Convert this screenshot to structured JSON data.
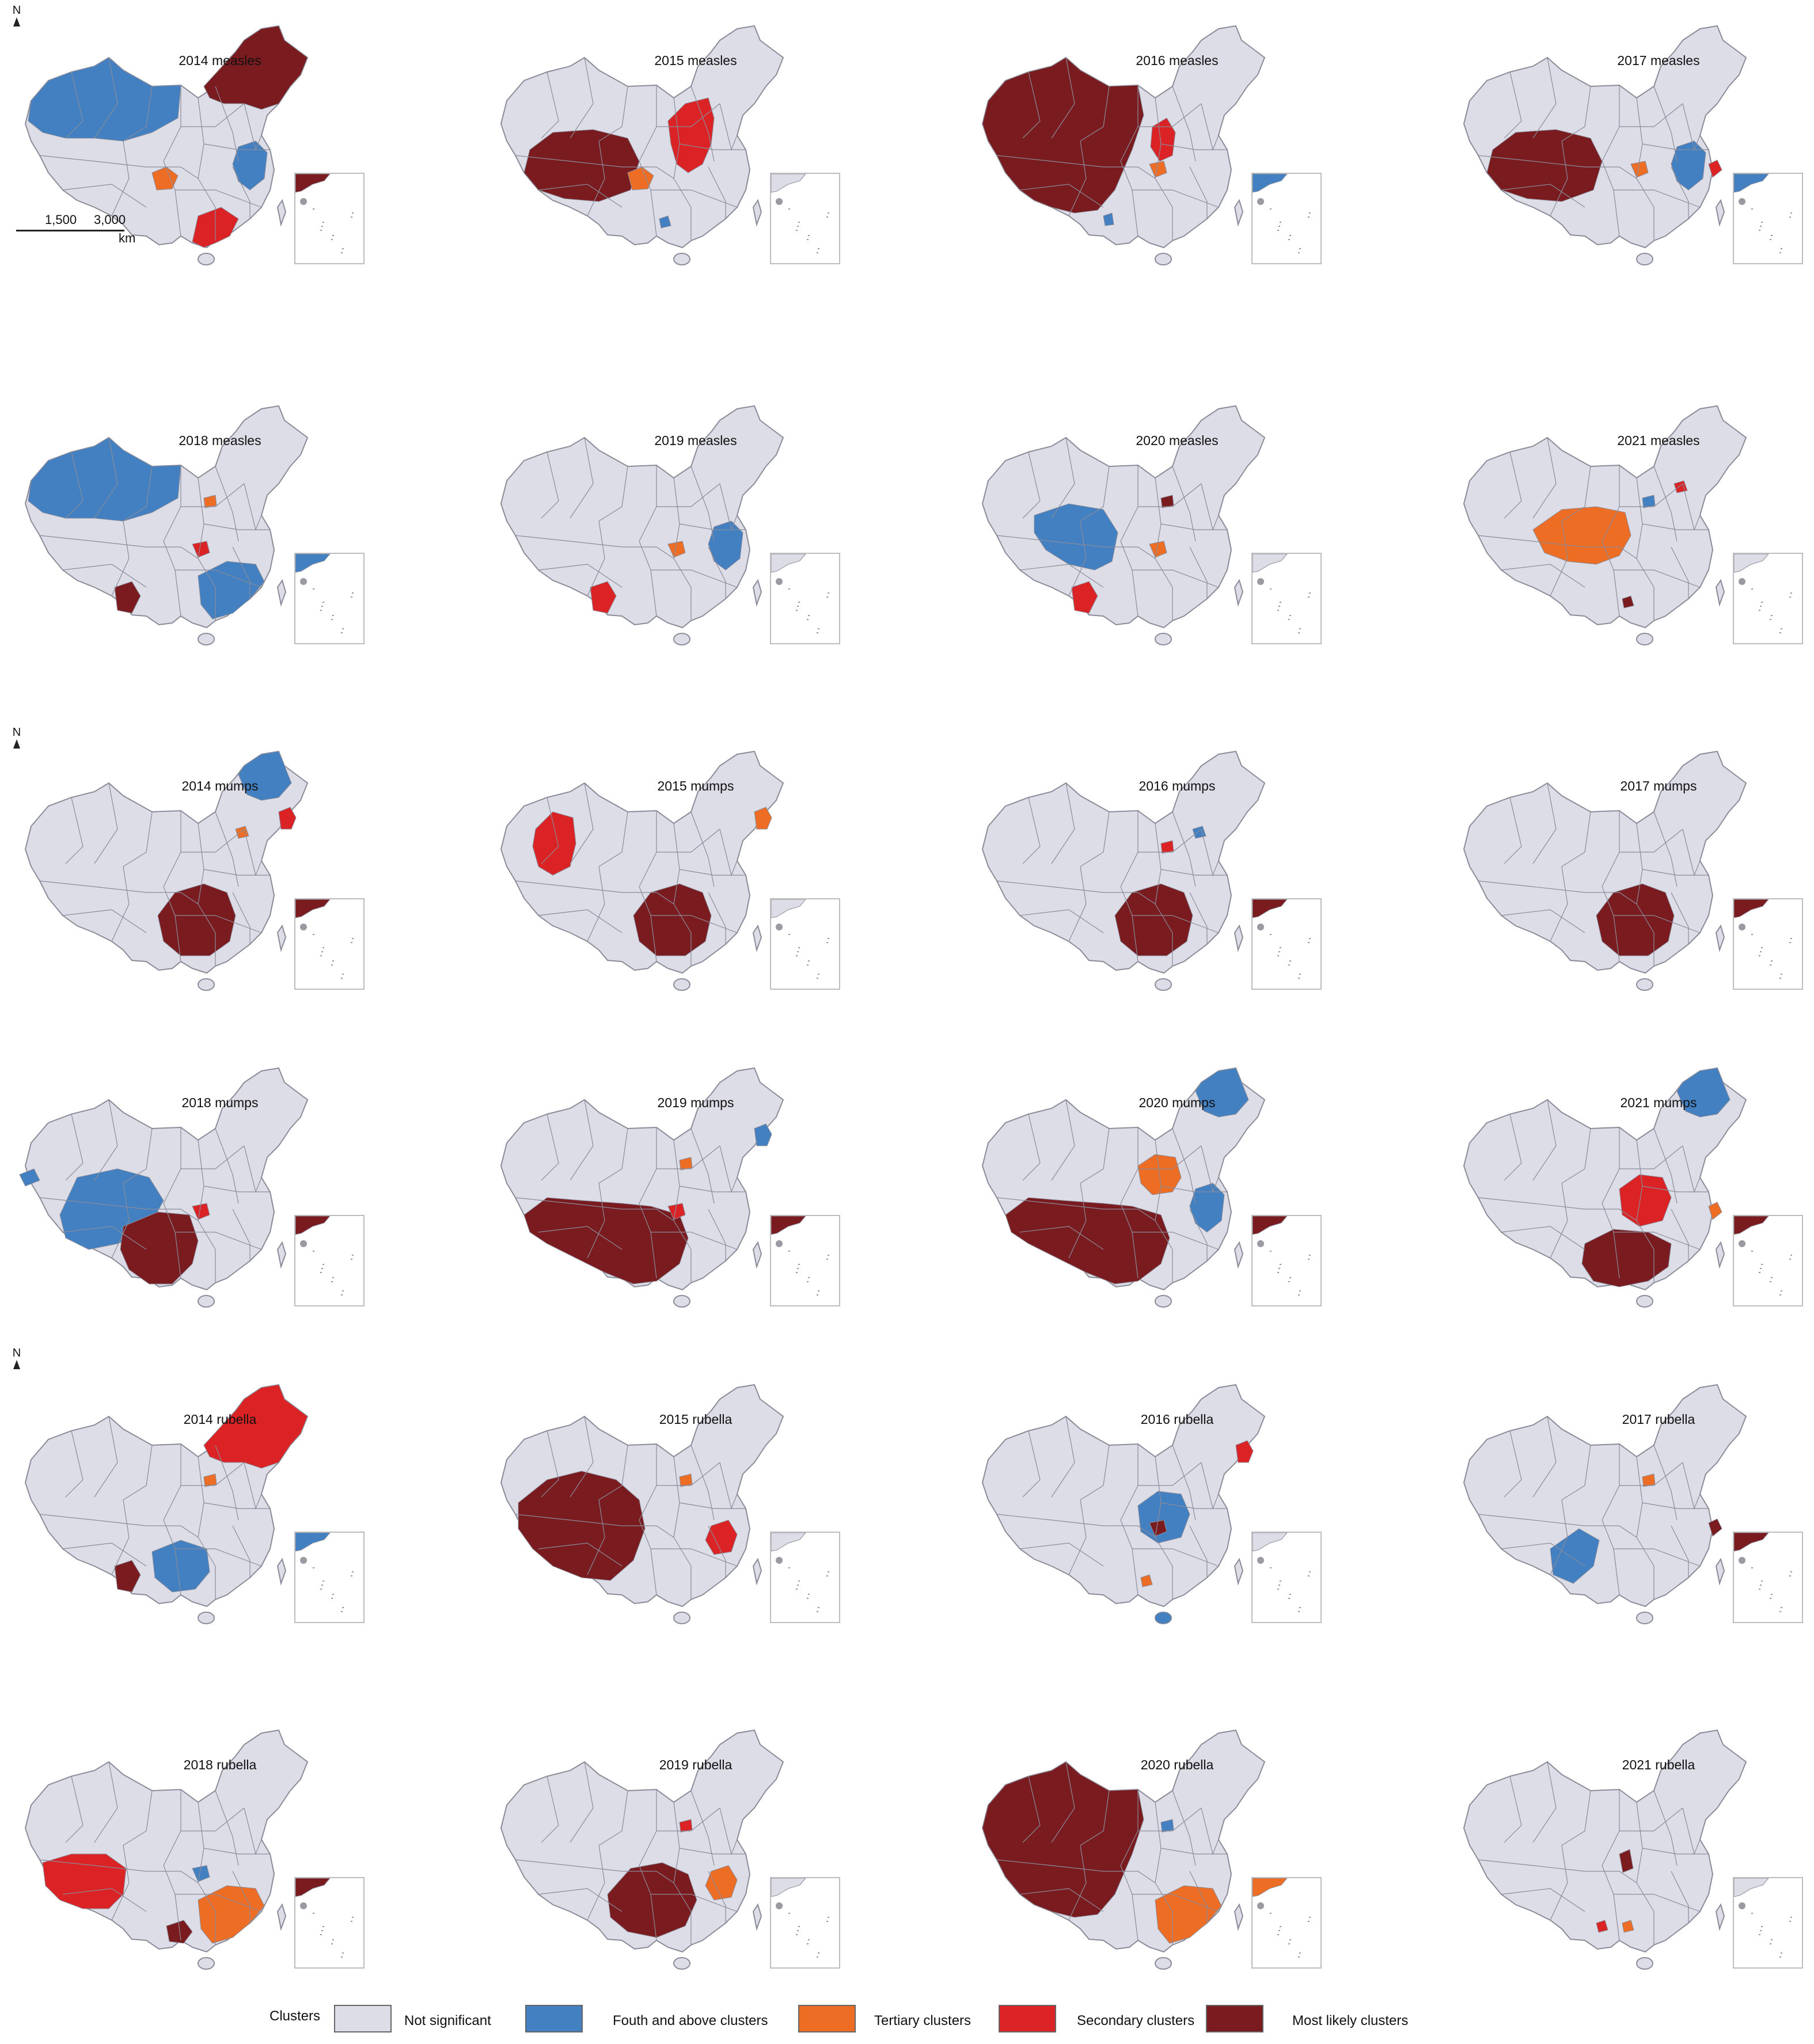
{
  "north_label": "N",
  "scale": {
    "left": "1,500",
    "right": "3,000",
    "unit": "km"
  },
  "colors": {
    "land": "#dcdde6",
    "border": "#8a8c99",
    "ns": "#dcdde6",
    "fourth": "#4280c2",
    "tertiary": "#ee6d24",
    "secondary": "#db2325",
    "most": "#7a1b20"
  },
  "legend": {
    "title": "Clusters",
    "items": [
      {
        "key": "ns",
        "label": "Not significant"
      },
      {
        "key": "fourth",
        "label": "Fouth and above clusters"
      },
      {
        "key": "tertiary",
        "label": "Tertiary clusters"
      },
      {
        "key": "secondary",
        "label": "Secondary clusters"
      },
      {
        "key": "most",
        "label": "Most likely clusters"
      }
    ]
  },
  "panels": [
    {
      "title": "2014 measles",
      "clusters": [
        {
          "c": "fourth",
          "r": "xinjiang"
        },
        {
          "c": "most",
          "r": "northeast"
        },
        {
          "c": "fourth",
          "r": "east"
        },
        {
          "c": "tertiary",
          "r": "sichuan"
        },
        {
          "c": "secondary",
          "r": "guangdong"
        },
        {
          "c": "most",
          "r": "inset_top"
        }
      ]
    },
    {
      "title": "2015 measles",
      "clusters": [
        {
          "c": "most",
          "r": "tibet_qinghai"
        },
        {
          "c": "secondary",
          "r": "north_china"
        },
        {
          "c": "tertiary",
          "r": "sichuan"
        },
        {
          "c": "fourth",
          "r": "south_spot"
        }
      ]
    },
    {
      "title": "2016 measles",
      "clusters": [
        {
          "c": "most",
          "r": "west_all"
        },
        {
          "c": "secondary",
          "r": "shanxi"
        },
        {
          "c": "tertiary",
          "r": "central_spot"
        },
        {
          "c": "fourth",
          "r": "southwest_spot"
        },
        {
          "c": "fourth",
          "r": "inset_top"
        }
      ]
    },
    {
      "title": "2017 measles",
      "clusters": [
        {
          "c": "most",
          "r": "tibet_qinghai"
        },
        {
          "c": "fourth",
          "r": "east"
        },
        {
          "c": "secondary",
          "r": "east_spot"
        },
        {
          "c": "tertiary",
          "r": "central_spot"
        },
        {
          "c": "fourth",
          "r": "inset_top"
        }
      ]
    },
    {
      "title": "2018 measles",
      "clusters": [
        {
          "c": "fourth",
          "r": "xinjiang"
        },
        {
          "c": "fourth",
          "r": "southeast"
        },
        {
          "c": "most",
          "r": "yunnan"
        },
        {
          "c": "secondary",
          "r": "central_spot"
        },
        {
          "c": "tertiary",
          "r": "north_spot"
        },
        {
          "c": "fourth",
          "r": "inset_top"
        }
      ]
    },
    {
      "title": "2019 measles",
      "clusters": [
        {
          "c": "fourth",
          "r": "east"
        },
        {
          "c": "secondary",
          "r": "yunnan"
        },
        {
          "c": "tertiary",
          "r": "central_spot"
        }
      ]
    },
    {
      "title": "2020 measles",
      "clusters": [
        {
          "c": "fourth",
          "r": "qinghai"
        },
        {
          "c": "secondary",
          "r": "yunnan"
        },
        {
          "c": "tertiary",
          "r": "central_spot"
        },
        {
          "c": "most",
          "r": "north_spot"
        }
      ]
    },
    {
      "title": "2021 measles",
      "clusters": [
        {
          "c": "tertiary",
          "r": "gansu_shaanxi"
        },
        {
          "c": "secondary",
          "r": "beijing"
        },
        {
          "c": "fourth",
          "r": "north_spot"
        },
        {
          "c": "most",
          "r": "south_spot"
        }
      ]
    },
    {
      "title": "2014 mumps",
      "clusters": [
        {
          "c": "most",
          "r": "central_south"
        },
        {
          "c": "fourth",
          "r": "heilongjiang"
        },
        {
          "c": "secondary",
          "r": "northeast_spot"
        },
        {
          "c": "tertiary",
          "r": "beijing"
        },
        {
          "c": "most",
          "r": "inset_top"
        }
      ]
    },
    {
      "title": "2015 mumps",
      "clusters": [
        {
          "c": "secondary",
          "r": "xinjiang_south"
        },
        {
          "c": "most",
          "r": "central_south"
        },
        {
          "c": "tertiary",
          "r": "northeast_spot"
        }
      ]
    },
    {
      "title": "2016 mumps",
      "clusters": [
        {
          "c": "most",
          "r": "central_south"
        },
        {
          "c": "secondary",
          "r": "north_spot"
        },
        {
          "c": "fourth",
          "r": "beijing"
        },
        {
          "c": "most",
          "r": "inset_top"
        }
      ]
    },
    {
      "title": "2017 mumps",
      "clusters": [
        {
          "c": "most",
          "r": "central_south"
        },
        {
          "c": "most",
          "r": "inset_top"
        }
      ]
    },
    {
      "title": "2018 mumps",
      "clusters": [
        {
          "c": "fourth",
          "r": "qinghai_wide"
        },
        {
          "c": "most",
          "r": "southwest_wide"
        },
        {
          "c": "fourth",
          "r": "xinjiang_spot"
        },
        {
          "c": "secondary",
          "r": "central_spot"
        },
        {
          "c": "most",
          "r": "inset_top"
        }
      ]
    },
    {
      "title": "2019 mumps",
      "clusters": [
        {
          "c": "most",
          "r": "south_wide"
        },
        {
          "c": "fourth",
          "r": "northeast_spot"
        },
        {
          "c": "tertiary",
          "r": "north_spot"
        },
        {
          "c": "secondary",
          "r": "central_spot"
        },
        {
          "c": "most",
          "r": "inset_top"
        }
      ]
    },
    {
      "title": "2020 mumps",
      "clusters": [
        {
          "c": "most",
          "r": "south_wide"
        },
        {
          "c": "tertiary",
          "r": "inner_mongolia"
        },
        {
          "c": "fourth",
          "r": "heilongjiang"
        },
        {
          "c": "fourth",
          "r": "east"
        },
        {
          "c": "most",
          "r": "inset_top"
        }
      ]
    },
    {
      "title": "2021 mumps",
      "clusters": [
        {
          "c": "most",
          "r": "southeast_wide"
        },
        {
          "c": "secondary",
          "r": "central_north"
        },
        {
          "c": "fourth",
          "r": "heilongjiang"
        },
        {
          "c": "tertiary",
          "r": "east_spot"
        },
        {
          "c": "most",
          "r": "inset_top"
        }
      ]
    },
    {
      "title": "2014 rubella",
      "clusters": [
        {
          "c": "fourth",
          "r": "guizhou"
        },
        {
          "c": "secondary",
          "r": "northeast"
        },
        {
          "c": "most",
          "r": "yunnan"
        },
        {
          "c": "tertiary",
          "r": "north_spot"
        },
        {
          "c": "fourth",
          "r": "inset_top"
        }
      ]
    },
    {
      "title": "2015 rubella",
      "clusters": [
        {
          "c": "most",
          "r": "west_south"
        },
        {
          "c": "secondary",
          "r": "east_spot_big"
        },
        {
          "c": "tertiary",
          "r": "north_spot"
        }
      ]
    },
    {
      "title": "2016 rubella",
      "clusters": [
        {
          "c": "fourth",
          "r": "central_north"
        },
        {
          "c": "most",
          "r": "central_spot"
        },
        {
          "c": "secondary",
          "r": "northeast_spot"
        },
        {
          "c": "tertiary",
          "r": "south_spot"
        },
        {
          "c": "fourth",
          "r": "hainan"
        }
      ]
    },
    {
      "title": "2017 rubella",
      "clusters": [
        {
          "c": "fourth",
          "r": "sichuan_wide"
        },
        {
          "c": "most",
          "r": "east_spot"
        },
        {
          "c": "tertiary",
          "r": "north_spot"
        },
        {
          "c": "most",
          "r": "inset_top"
        }
      ]
    },
    {
      "title": "2018 rubella",
      "clusters": [
        {
          "c": "secondary",
          "r": "tibet_south"
        },
        {
          "c": "tertiary",
          "r": "southeast"
        },
        {
          "c": "most",
          "r": "guangxi"
        },
        {
          "c": "fourth",
          "r": "central_spot"
        },
        {
          "c": "most",
          "r": "inset_top"
        }
      ]
    },
    {
      "title": "2019 rubella",
      "clusters": [
        {
          "c": "most",
          "r": "central_south_w"
        },
        {
          "c": "tertiary",
          "r": "east_spot_big"
        },
        {
          "c": "secondary",
          "r": "north_spot"
        }
      ]
    },
    {
      "title": "2020 rubella",
      "clusters": [
        {
          "c": "most",
          "r": "west_all"
        },
        {
          "c": "tertiary",
          "r": "southeast"
        },
        {
          "c": "fourth",
          "r": "north_spot"
        },
        {
          "c": "tertiary",
          "r": "inset_top"
        }
      ]
    },
    {
      "title": "2021 rubella",
      "clusters": [
        {
          "c": "most",
          "r": "shaanxi_spot"
        },
        {
          "c": "tertiary",
          "r": "south_spot"
        },
        {
          "c": "secondary",
          "r": "guangxi_spot"
        }
      ]
    }
  ]
}
